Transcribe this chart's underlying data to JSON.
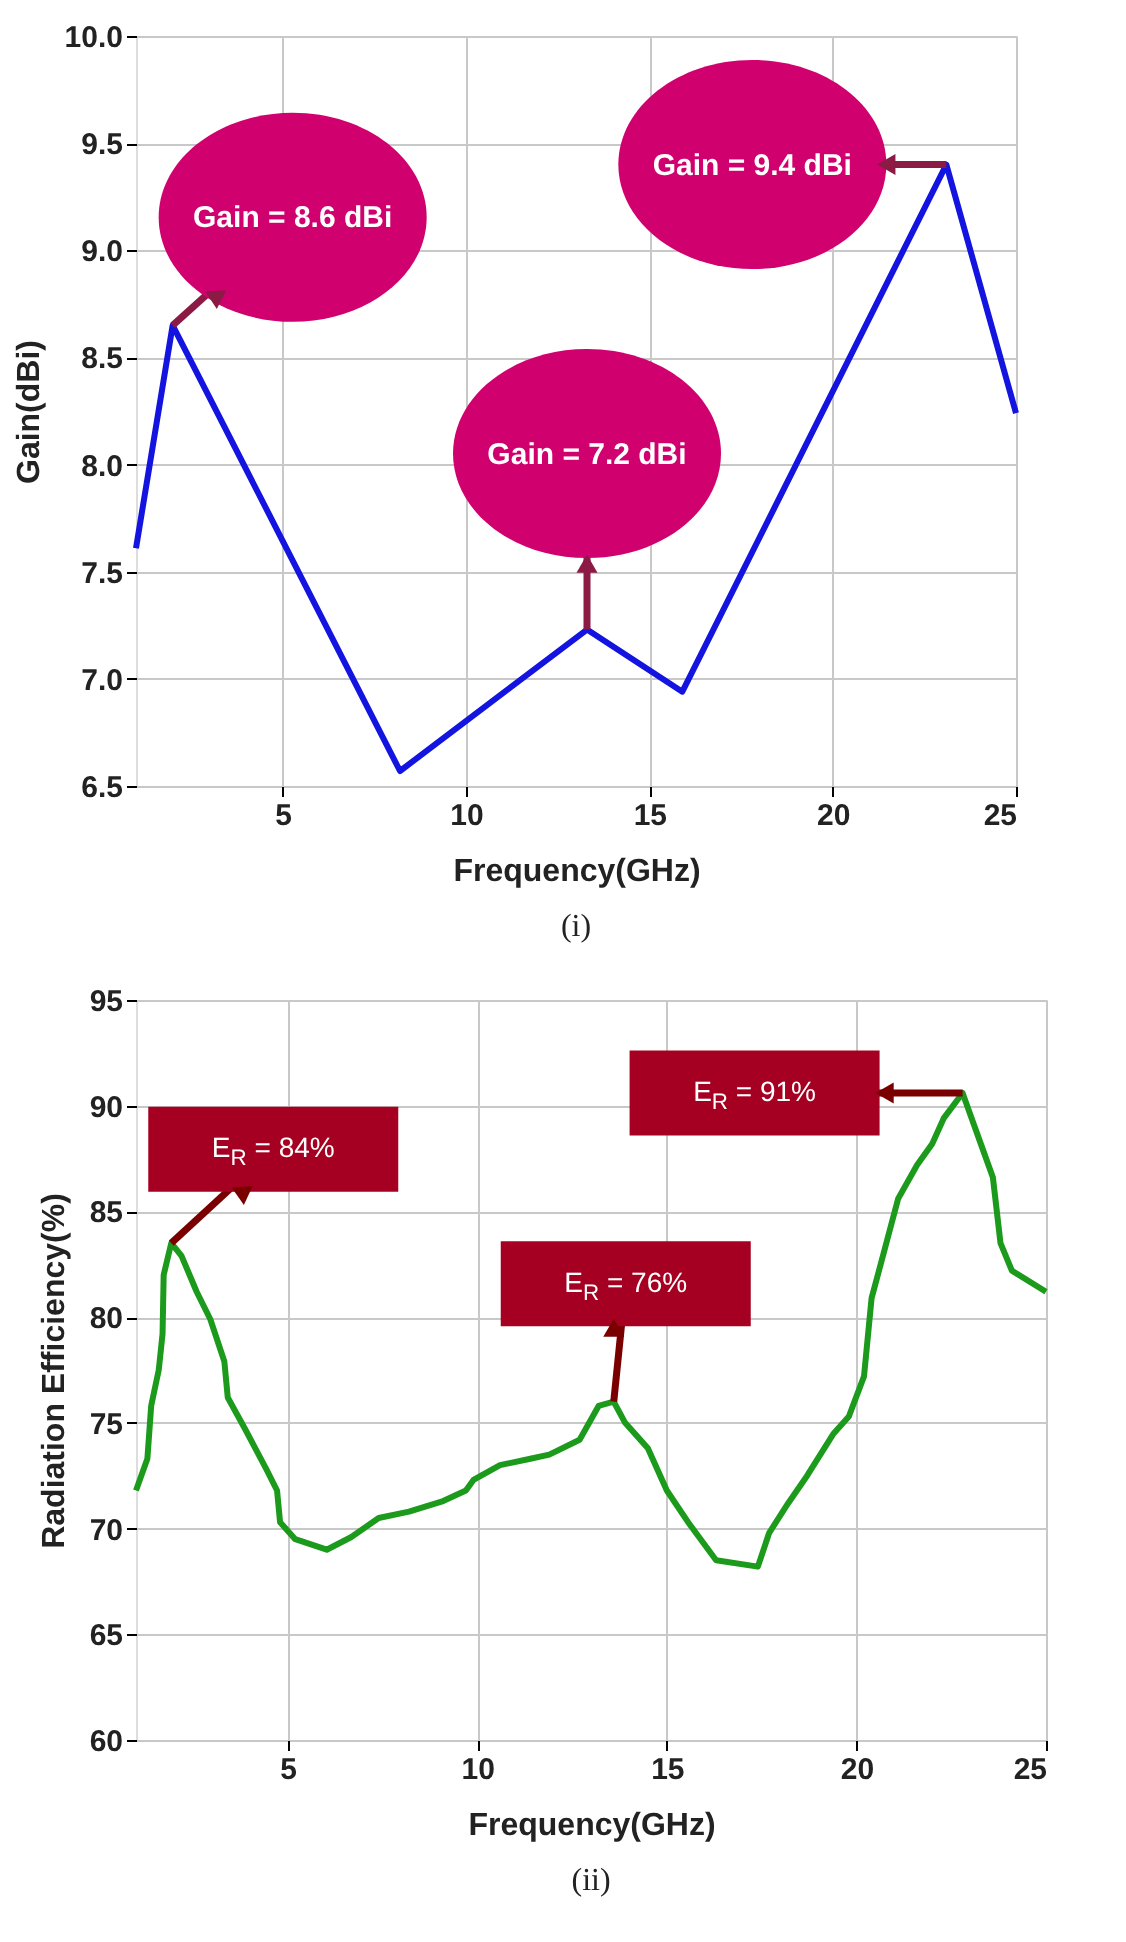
{
  "chart_data": [
    {
      "type": "line",
      "xlabel": "Frequency(GHz)",
      "ylabel": "Gain(dBi)",
      "x": [
        1,
        2.0,
        8.2,
        13.3,
        15.9,
        23.1,
        25
      ],
      "series": [
        {
          "color": "#1414e0",
          "values": [
            7.61,
            8.65,
            6.57,
            7.23,
            6.94,
            9.4,
            8.24
          ]
        }
      ],
      "xlim": [
        1,
        25
      ],
      "xticks": [
        5,
        10,
        15,
        20,
        25
      ],
      "ylim": [
        6.5,
        10.0
      ],
      "yticks": [
        6.5,
        {
          "value": 7,
          "label": "7.0"
        },
        7.5,
        {
          "value": 8,
          "label": "8.0"
        },
        8.5,
        {
          "value": 9,
          "label": "9.0"
        },
        9.5,
        {
          "value": 10,
          "label": "10.0"
        }
      ],
      "grid": true,
      "legend": false,
      "marker": "none",
      "line_style": "solid",
      "annotations": [
        {
          "text": "Gain = 8.6 dBi",
          "x": 2.0,
          "y": 8.65
        },
        {
          "text": "Gain = 7.2 dBi",
          "x": 13.3,
          "y": 7.23
        },
        {
          "text": "Gain = 9.4 dBi",
          "x": 23.1,
          "y": 9.4
        },
        "(i)"
      ]
    },
    {
      "type": "line",
      "xlabel": "Frequency(GHz)",
      "ylabel": "Radiation Efficiency(%)",
      "x": [
        1.0,
        1.3,
        1.4,
        1.6,
        1.7,
        1.73,
        1.93,
        2.2,
        2.6,
        2.96,
        3.33,
        3.42,
        3.88,
        4.44,
        4.72,
        4.8,
        5.2,
        6.03,
        6.68,
        7.4,
        8.2,
        9.1,
        9.7,
        9.9,
        10.6,
        11.4,
        11.9,
        12.7,
        13.2,
        13.6,
        13.9,
        14.5,
        15.0,
        15.6,
        16.3,
        17.4,
        17.7,
        18.2,
        18.7,
        19.4,
        19.8,
        20.2,
        20.4,
        20.7,
        21.1,
        21.6,
        22.0,
        22.3,
        22.8,
        23.0,
        23.3,
        23.6,
        23.8,
        24.1,
        25.0
      ],
      "series": [
        {
          "color": "#1c9a1c",
          "values": [
            71.8,
            73.3,
            75.8,
            77.5,
            79.2,
            82.0,
            83.5,
            82.9,
            81.2,
            79.9,
            77.9,
            76.2,
            74.7,
            72.8,
            71.8,
            70.3,
            69.5,
            69.0,
            69.6,
            70.5,
            70.8,
            71.3,
            71.8,
            72.3,
            73.0,
            73.3,
            73.5,
            74.2,
            75.8,
            76.0,
            75.0,
            73.8,
            71.8,
            70.2,
            68.5,
            68.2,
            69.8,
            71.2,
            72.5,
            74.5,
            75.3,
            77.2,
            80.9,
            82.9,
            85.6,
            87.2,
            88.2,
            89.4,
            90.6,
            89.6,
            88.1,
            86.6,
            83.5,
            82.2,
            81.2
          ]
        }
      ],
      "xlim": [
        1,
        25
      ],
      "xticks": [
        5,
        10,
        15,
        20,
        25
      ],
      "ylim": [
        60,
        95
      ],
      "yticks": [
        60,
        65,
        70,
        75,
        80,
        85,
        90,
        95
      ],
      "grid": true,
      "legend": false,
      "marker": "none",
      "line_style": "solid",
      "annotations": [
        {
          "text": "E$_{R}$ = 84%",
          "x": 1.93,
          "y": 83.5
        },
        {
          "text": "E$_{R}$ = 76%",
          "x": 13.6,
          "y": 76.0
        },
        {
          "text": "E$_{R}$ = 91%",
          "x": 22.8,
          "y": 90.6
        },
        "(ii)"
      ]
    }
  ]
}
